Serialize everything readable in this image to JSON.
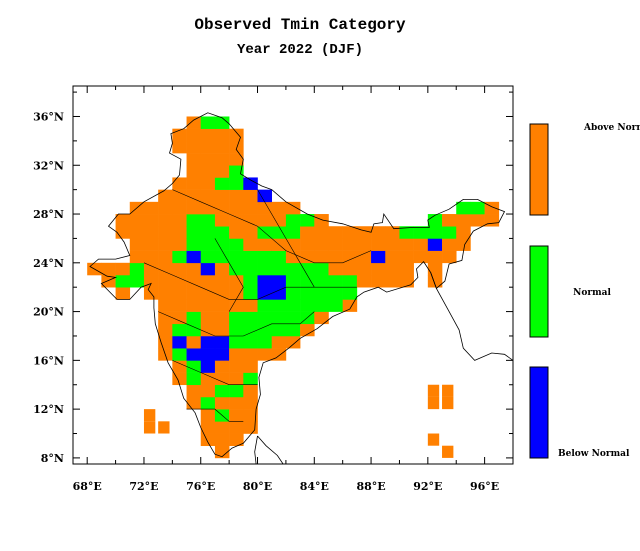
{
  "title": "Observed Tmin Category",
  "subtitle": "Year 2022 (DJF)",
  "map": {
    "lon_range": [
      67,
      98
    ],
    "lat_range": [
      7.5,
      38.5
    ],
    "lon_ticks": [
      "68°E",
      "72°E",
      "76°E",
      "80°E",
      "84°E",
      "88°E",
      "92°E",
      "96°E"
    ],
    "lat_ticks": [
      "8°N",
      "12°N",
      "16°N",
      "20°N",
      "24°N",
      "28°N",
      "32°N",
      "36°N"
    ]
  },
  "legend": {
    "items": [
      {
        "label": "Above Normal",
        "color": "#ff8000"
      },
      {
        "label": "Normal",
        "color": "#00ff00"
      },
      {
        "label": "Below Normal",
        "color": "#0000ff"
      }
    ]
  },
  "colors": {
    "above": "#ff8000",
    "normal": "#00ff00",
    "below": "#0000ff"
  }
}
